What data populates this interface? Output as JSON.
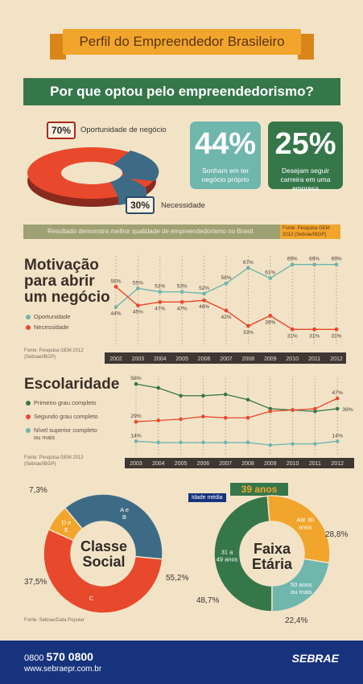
{
  "title": "Perfil do Empreendedor Brasileiro",
  "question": "Por que optou pelo empreendedorismo?",
  "donut_reason": {
    "opportunity_pct": "70%",
    "opportunity_label": "Oportunidade de negócio",
    "necessity_pct": "30%",
    "necessity_label": "Necessidade"
  },
  "stats": [
    {
      "value": "44%",
      "text": "Sonham em ter negócio próprio"
    },
    {
      "value": "25%",
      "text": "Desejam seguir carreira em uma empresa"
    }
  ],
  "strip": {
    "text": "Resultado demonstra melhor qualidade de empreendedorismo no Brasil.",
    "source": "Fonte: Pesquisa GEM 2012 (Sebrae/IBGP)"
  },
  "motivacao": {
    "title_lines": [
      "Motivação",
      "para abrir",
      "um negócio"
    ],
    "legend": [
      "Oportunidade",
      "Necessidade"
    ],
    "source_lines": [
      "Fonte: Pesquisa GEM 2012",
      "(Sebrae/IBGP)"
    ]
  },
  "escolaridade": {
    "title": "Escolaridade",
    "legend": [
      "Primeiro grau completo",
      "Segundo grau completo",
      "Nível superior completo",
      "ou mais"
    ],
    "source_lines": [
      "Fonte: Pesquisa GEM 2012",
      "(Sebrae/IBGP)"
    ]
  },
  "classe": {
    "center_lines": [
      "Classe",
      "Social"
    ],
    "segments": [
      "D e E",
      "A e B",
      "C"
    ],
    "pcts": [
      "7,3%",
      "37,5%",
      "55,2%"
    ],
    "source": "Fonte: Sebrae/Data Popular"
  },
  "faixa": {
    "center_lines": [
      "Faixa",
      "Etária"
    ],
    "badge": "39 anos",
    "badge_label": "Idade média",
    "segments": [
      "31 a 49 anos",
      "Até 30 anos",
      "50 anos ou mais"
    ],
    "pcts": [
      "48,7%",
      "28,8%",
      "22,4%"
    ]
  },
  "footer": {
    "phone_prefix": "0800",
    "phone_main": "570 0800",
    "site": "www.sebraepr.com.br",
    "logo": "SEBRAE"
  },
  "colors": {
    "orange": "#f2a52c",
    "red": "#e8482c",
    "teal": "#6fb6ad",
    "green": "#36774a",
    "navy": "#17337d"
  },
  "chart_data": [
    {
      "type": "line",
      "x": [
        "2002",
        "2003",
        "2004",
        "2005",
        "2006",
        "2007",
        "2008",
        "2009",
        "2010",
        "2011",
        "2012"
      ],
      "series": [
        {
          "name": "Oportunidade",
          "values": [
            44,
            55,
            53,
            53,
            52,
            58,
            67,
            61,
            69,
            69,
            69
          ]
        },
        {
          "name": "Necessidade",
          "values": [
            56,
            45,
            47,
            47,
            48,
            42,
            33,
            39,
            31,
            31,
            31
          ]
        }
      ],
      "labels_top": [
        "56%",
        "55%",
        "53%",
        "53%",
        "52%",
        "58%",
        "67%",
        "61%",
        "69%",
        "69%",
        "69%"
      ],
      "labels_bottom": [
        "44%",
        "45%",
        "47%",
        "47%",
        "48%",
        "42%",
        "33%",
        "39%",
        "31%",
        "31%",
        "31%"
      ]
    },
    {
      "type": "line",
      "x": [
        "2003",
        "2004",
        "2005",
        "2006",
        "2007",
        "2008",
        "2009",
        "2010",
        "2011",
        "2012"
      ],
      "series": [
        {
          "name": "Primeiro grau completo",
          "values": [
            58,
            55,
            49,
            49,
            50,
            46,
            39,
            38,
            37,
            39
          ]
        },
        {
          "name": "Segundo grau completo",
          "values": [
            29,
            30,
            31,
            33,
            32,
            32,
            37,
            38,
            39,
            47
          ]
        },
        {
          "name": "Nível superior completo ou mais",
          "values": [
            14,
            13,
            13,
            13,
            13,
            13,
            11,
            12,
            12,
            14
          ]
        }
      ],
      "point_labels": [
        "58%",
        "29%",
        "14%",
        "47%",
        "39%",
        "14%"
      ]
    },
    {
      "type": "pie",
      "categories": [
        "D e E",
        "A e B",
        "C"
      ],
      "values": [
        7.3,
        37.5,
        55.2
      ]
    },
    {
      "type": "pie",
      "categories": [
        "31 a 49 anos",
        "Até 30 anos",
        "50 anos ou mais"
      ],
      "values": [
        48.7,
        28.8,
        22.4
      ]
    }
  ]
}
